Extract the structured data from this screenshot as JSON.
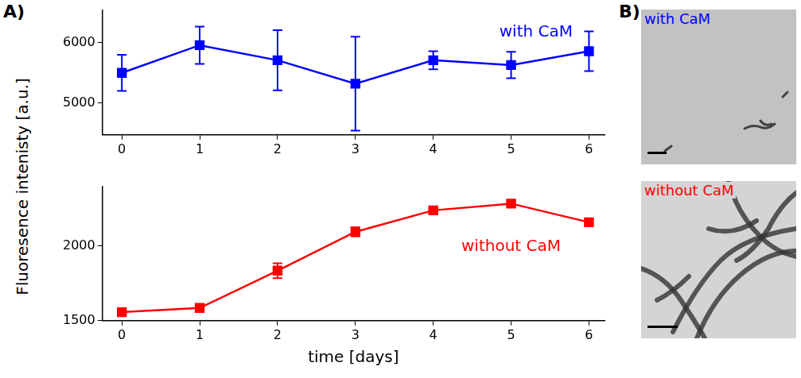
{
  "chart_data": [
    {
      "type": "line",
      "x": [
        0,
        1,
        2,
        3,
        4,
        5,
        6
      ],
      "series": [
        {
          "name": "with CaM",
          "color": "#0000ff",
          "values": [
            5500,
            5960,
            5710,
            5320,
            5710,
            5630,
            5860
          ],
          "errors": [
            300,
            310,
            500,
            780,
            150,
            220,
            330
          ]
        }
      ],
      "xlim": [
        -0.25,
        6.2
      ],
      "xticks": [
        0,
        1,
        2,
        3,
        4,
        5,
        6
      ],
      "ylim": [
        4470,
        6545
      ],
      "yticks": [
        5000,
        6000
      ],
      "marker": "square",
      "grid": false
    },
    {
      "type": "line",
      "x": [
        0,
        1,
        2,
        3,
        4,
        5,
        6
      ],
      "series": [
        {
          "name": "without CaM",
          "color": "#ff0000",
          "values": [
            1557,
            1585,
            1835,
            2095,
            2239,
            2284,
            2159
          ],
          "errors": [
            15,
            25,
            50,
            30,
            15,
            15,
            15
          ]
        }
      ],
      "xlim": [
        -0.25,
        6.2
      ],
      "xticks": [
        0,
        1,
        2,
        3,
        4,
        5,
        6
      ],
      "ylim": [
        1500,
        2400
      ],
      "yticks": [
        1500,
        2000
      ],
      "marker": "square",
      "grid": false
    }
  ],
  "panel_a": {
    "label": "A)",
    "y_label": "Fluoresence intenisty [a.u.]",
    "x_label": "time [days]"
  },
  "panel_b": {
    "label": "B)",
    "images": [
      {
        "label": "with CaM",
        "color": "#0000ff"
      },
      {
        "label": "without CaM",
        "color": "#ff0000"
      }
    ]
  }
}
